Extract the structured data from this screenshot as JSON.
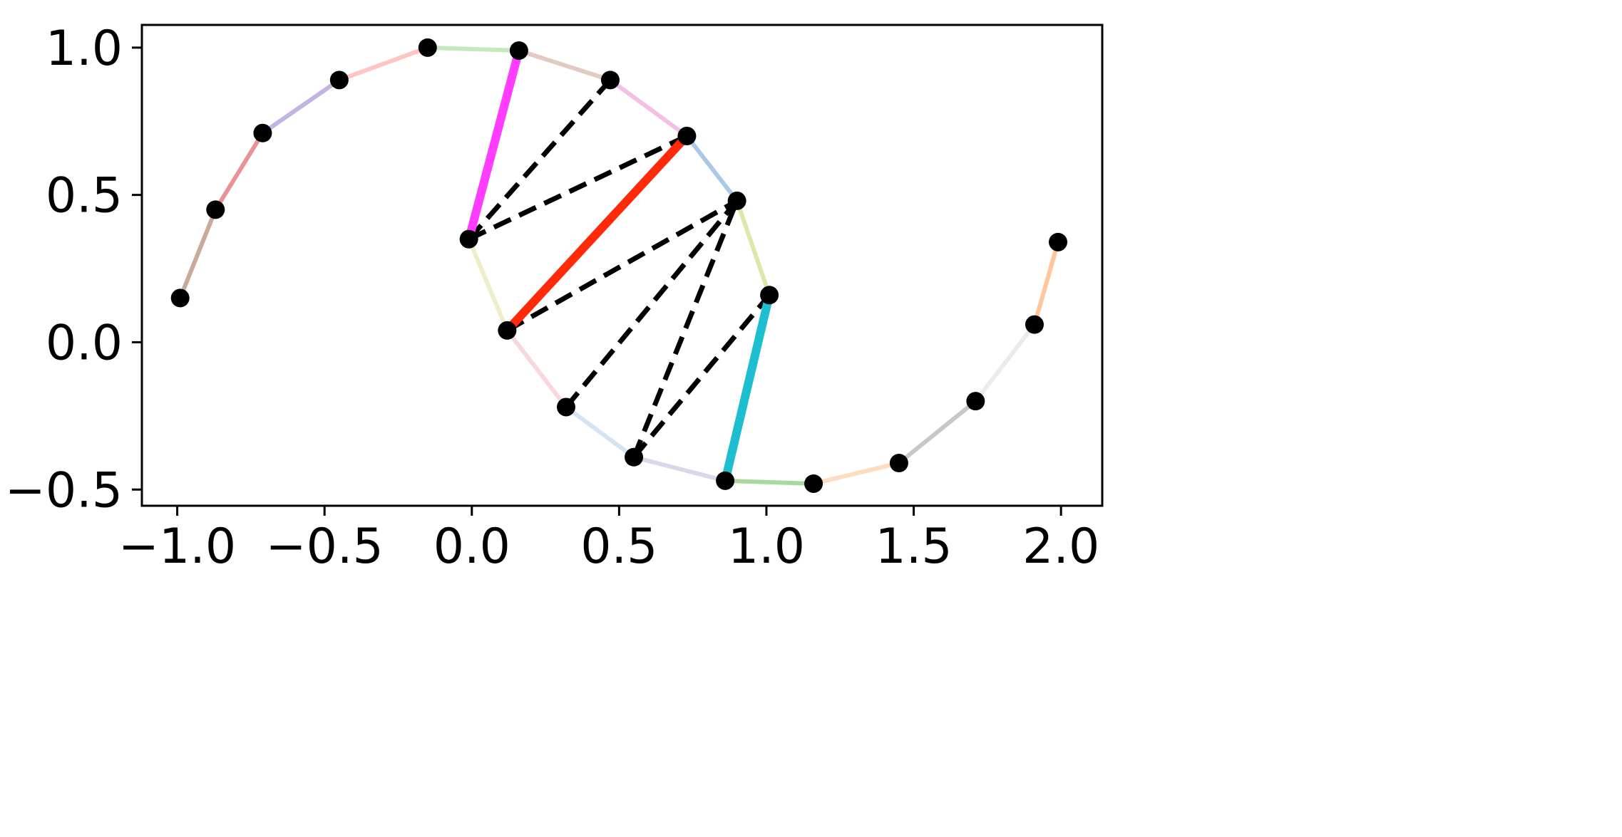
{
  "chart_data": {
    "type": "line",
    "title": "",
    "xlabel": "",
    "ylabel": "",
    "xlim": [
      -1.12,
      2.14
    ],
    "ylim": [
      -0.555,
      1.077
    ],
    "grid": false,
    "x_ticks": [
      {
        "value": -1.0,
        "label": "−1.0"
      },
      {
        "value": -0.5,
        "label": "−0.5"
      },
      {
        "value": 0.0,
        "label": "0.0"
      },
      {
        "value": 0.5,
        "label": "0.5"
      },
      {
        "value": 1.0,
        "label": "1.0"
      },
      {
        "value": 1.5,
        "label": "1.5"
      },
      {
        "value": 2.0,
        "label": "2.0"
      }
    ],
    "y_ticks": [
      {
        "value": -0.5,
        "label": "−0.5"
      },
      {
        "value": 0.0,
        "label": "0.0"
      },
      {
        "value": 0.5,
        "label": "0.5"
      },
      {
        "value": 1.0,
        "label": "1.0"
      }
    ],
    "points": [
      {
        "x": -0.99,
        "y": 0.15
      },
      {
        "x": -0.87,
        "y": 0.45
      },
      {
        "x": -0.71,
        "y": 0.71
      },
      {
        "x": -0.45,
        "y": 0.89
      },
      {
        "x": -0.15,
        "y": 1.0
      },
      {
        "x": 0.16,
        "y": 0.99
      },
      {
        "x": 0.47,
        "y": 0.89
      },
      {
        "x": 0.73,
        "y": 0.7
      },
      {
        "x": 0.9,
        "y": 0.48
      },
      {
        "x": 1.01,
        "y": 0.16
      },
      {
        "x": -0.01,
        "y": 0.35
      },
      {
        "x": 0.12,
        "y": 0.04
      },
      {
        "x": 0.32,
        "y": -0.22
      },
      {
        "x": 0.55,
        "y": -0.39
      },
      {
        "x": 0.86,
        "y": -0.47
      },
      {
        "x": 1.16,
        "y": -0.48
      },
      {
        "x": 1.45,
        "y": -0.41
      },
      {
        "x": 1.71,
        "y": -0.2
      },
      {
        "x": 1.91,
        "y": 0.06
      },
      {
        "x": 1.99,
        "y": 0.34
      }
    ],
    "path_segments": [
      {
        "from": 0,
        "to": 1,
        "color": "#c9a99a"
      },
      {
        "from": 1,
        "to": 2,
        "color": "#e89494"
      },
      {
        "from": 2,
        "to": 3,
        "color": "#c3b3e0"
      },
      {
        "from": 3,
        "to": 4,
        "color": "#ffc4c4"
      },
      {
        "from": 4,
        "to": 5,
        "color": "#c6e8bf"
      },
      {
        "from": 5,
        "to": 6,
        "color": "#e0cbc0"
      },
      {
        "from": 6,
        "to": 7,
        "color": "#f4bfe4"
      },
      {
        "from": 7,
        "to": 8,
        "color": "#a9c9e6"
      },
      {
        "from": 8,
        "to": 9,
        "color": "#dfe6a7"
      },
      {
        "from": 10,
        "to": 11,
        "color": "#eeeec8"
      },
      {
        "from": 11,
        "to": 12,
        "color": "#fad7dd"
      },
      {
        "from": 12,
        "to": 13,
        "color": "#d6e3f3"
      },
      {
        "from": 13,
        "to": 14,
        "color": "#ddd6ea"
      },
      {
        "from": 14,
        "to": 15,
        "color": "#a9d9a0"
      },
      {
        "from": 15,
        "to": 16,
        "color": "#fedcc0"
      },
      {
        "from": 16,
        "to": 17,
        "color": "#c7c7c7"
      },
      {
        "from": 17,
        "to": 18,
        "color": "#ebebeb"
      },
      {
        "from": 18,
        "to": 19,
        "color": "#ffc69c"
      }
    ],
    "highlight_segments": [
      {
        "from": 10,
        "to": 5,
        "color": "#ff3cff"
      },
      {
        "from": 11,
        "to": 7,
        "color": "#ff2a0a"
      },
      {
        "from": 14,
        "to": 9,
        "color": "#1dbecf"
      }
    ],
    "dashed_segments": [
      {
        "from": 10,
        "to": 6
      },
      {
        "from": 10,
        "to": 7
      },
      {
        "from": 11,
        "to": 8
      },
      {
        "from": 12,
        "to": 8
      },
      {
        "from": 13,
        "to": 8
      },
      {
        "from": 13,
        "to": 9
      }
    ],
    "colors": {
      "marker": "#000000",
      "dashed": "#000000",
      "axes": "#000000",
      "background": "#ffffff"
    }
  }
}
